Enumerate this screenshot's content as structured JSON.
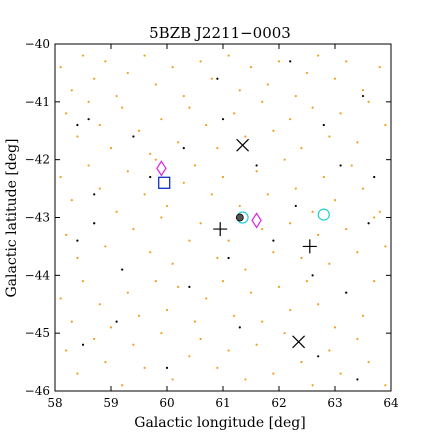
{
  "chart_data": {
    "type": "scatter",
    "title": "5BZB J2211−0003",
    "xlabel": "Galactic longitude [deg]",
    "ylabel": "Galactic latitude [deg]",
    "xlim": [
      58,
      64
    ],
    "ylim": [
      -46,
      -40
    ],
    "x_ticks": [
      58,
      59,
      60,
      61,
      62,
      63,
      64
    ],
    "x_tick_labels": [
      "58",
      "59",
      "60",
      "61",
      "62",
      "63",
      "64"
    ],
    "y_ticks": [
      -40,
      -41,
      -42,
      -43,
      -44,
      -45,
      -46
    ],
    "y_tick_labels": [
      "−40",
      "−41",
      "−42",
      "−43",
      "−44",
      "−45",
      "−46"
    ],
    "grid": false,
    "colors": {
      "background_sources": "#f0a020",
      "catalog_sources": "#000000",
      "cross_x": "#000000",
      "plus": "#000000",
      "diamond": "#e020e0",
      "circle": "#20d0d0",
      "square": "#1030c0"
    },
    "series": [
      {
        "marker": "orange-dot",
        "points": [
          [
            58.1,
            -40.4
          ],
          [
            58.3,
            -40.8
          ],
          [
            58.5,
            -40.2
          ],
          [
            58.7,
            -40.6
          ],
          [
            58.9,
            -40.3
          ],
          [
            59.1,
            -40.9
          ],
          [
            59.3,
            -40.5
          ],
          [
            59.6,
            -40.2
          ],
          [
            59.8,
            -40.7
          ],
          [
            60.1,
            -40.4
          ],
          [
            60.3,
            -40.9
          ],
          [
            60.6,
            -40.3
          ],
          [
            60.8,
            -40.6
          ],
          [
            61.1,
            -40.2
          ],
          [
            61.3,
            -40.8
          ],
          [
            61.5,
            -40.4
          ],
          [
            61.8,
            -40.7
          ],
          [
            62.0,
            -40.3
          ],
          [
            62.3,
            -40.9
          ],
          [
            62.5,
            -40.5
          ],
          [
            62.7,
            -40.2
          ],
          [
            63.0,
            -40.6
          ],
          [
            63.2,
            -40.3
          ],
          [
            63.5,
            -40.8
          ],
          [
            63.8,
            -40.4
          ],
          [
            58.2,
            -41.2
          ],
          [
            58.4,
            -41.6
          ],
          [
            58.6,
            -41.0
          ],
          [
            58.8,
            -41.4
          ],
          [
            59.0,
            -41.8
          ],
          [
            59.2,
            -41.1
          ],
          [
            59.5,
            -41.5
          ],
          [
            59.7,
            -41.9
          ],
          [
            59.9,
            -41.3
          ],
          [
            60.2,
            -41.7
          ],
          [
            60.4,
            -41.1
          ],
          [
            60.7,
            -41.4
          ],
          [
            60.9,
            -41.8
          ],
          [
            61.2,
            -41.2
          ],
          [
            61.4,
            -41.6
          ],
          [
            61.7,
            -41.0
          ],
          [
            61.9,
            -41.5
          ],
          [
            62.2,
            -41.3
          ],
          [
            62.4,
            -41.8
          ],
          [
            62.6,
            -41.1
          ],
          [
            62.9,
            -41.6
          ],
          [
            63.1,
            -41.2
          ],
          [
            63.4,
            -41.7
          ],
          [
            63.6,
            -41.0
          ],
          [
            63.9,
            -41.4
          ],
          [
            58.1,
            -42.3
          ],
          [
            58.3,
            -42.7
          ],
          [
            58.6,
            -42.1
          ],
          [
            58.8,
            -42.5
          ],
          [
            59.1,
            -42.9
          ],
          [
            59.3,
            -42.2
          ],
          [
            59.6,
            -42.6
          ],
          [
            59.8,
            -42.0
          ],
          [
            60.0,
            -42.8
          ],
          [
            60.3,
            -42.4
          ],
          [
            60.5,
            -42.1
          ],
          [
            60.8,
            -42.6
          ],
          [
            61.0,
            -42.3
          ],
          [
            61.3,
            -42.8
          ],
          [
            61.6,
            -42.2
          ],
          [
            61.8,
            -42.6
          ],
          [
            62.1,
            -42.0
          ],
          [
            62.3,
            -42.5
          ],
          [
            62.6,
            -42.9
          ],
          [
            62.8,
            -42.3
          ],
          [
            63.0,
            -42.7
          ],
          [
            63.3,
            -42.1
          ],
          [
            63.5,
            -42.5
          ],
          [
            63.8,
            -42.9
          ],
          [
            58.2,
            -43.3
          ],
          [
            58.4,
            -43.7
          ],
          [
            58.7,
            -43.1
          ],
          [
            58.9,
            -43.5
          ],
          [
            59.2,
            -43.9
          ],
          [
            59.4,
            -43.2
          ],
          [
            59.7,
            -43.6
          ],
          [
            59.9,
            -43.0
          ],
          [
            60.1,
            -43.8
          ],
          [
            60.4,
            -43.4
          ],
          [
            60.6,
            -43.1
          ],
          [
            60.9,
            -43.7
          ],
          [
            61.1,
            -43.4
          ],
          [
            61.4,
            -43.9
          ],
          [
            61.7,
            -43.2
          ],
          [
            61.9,
            -43.6
          ],
          [
            62.2,
            -43.1
          ],
          [
            62.4,
            -43.7
          ],
          [
            62.7,
            -43.3
          ],
          [
            62.9,
            -43.8
          ],
          [
            63.2,
            -43.2
          ],
          [
            63.4,
            -43.6
          ],
          [
            63.7,
            -43.0
          ],
          [
            63.9,
            -43.5
          ],
          [
            58.1,
            -44.4
          ],
          [
            58.3,
            -44.8
          ],
          [
            58.5,
            -44.1
          ],
          [
            58.8,
            -44.5
          ],
          [
            59.0,
            -44.9
          ],
          [
            59.3,
            -44.3
          ],
          [
            59.5,
            -44.7
          ],
          [
            59.8,
            -44.1
          ],
          [
            60.0,
            -44.6
          ],
          [
            60.2,
            -44.2
          ],
          [
            60.5,
            -44.8
          ],
          [
            60.7,
            -44.4
          ],
          [
            61.0,
            -44.1
          ],
          [
            61.2,
            -44.7
          ],
          [
            61.5,
            -44.3
          ],
          [
            61.7,
            -44.8
          ],
          [
            62.0,
            -44.2
          ],
          [
            62.2,
            -44.6
          ],
          [
            62.5,
            -44.1
          ],
          [
            62.7,
            -44.5
          ],
          [
            63.0,
            -44.9
          ],
          [
            63.2,
            -44.3
          ],
          [
            63.5,
            -44.7
          ],
          [
            63.7,
            -44.1
          ],
          [
            58.2,
            -45.3
          ],
          [
            58.4,
            -45.7
          ],
          [
            58.7,
            -45.1
          ],
          [
            58.9,
            -45.5
          ],
          [
            59.2,
            -45.9
          ],
          [
            59.4,
            -45.2
          ],
          [
            59.6,
            -45.6
          ],
          [
            59.9,
            -45.0
          ],
          [
            60.1,
            -45.8
          ],
          [
            60.4,
            -45.4
          ],
          [
            60.6,
            -45.1
          ],
          [
            60.9,
            -45.6
          ],
          [
            61.1,
            -45.3
          ],
          [
            61.4,
            -45.8
          ],
          [
            61.6,
            -45.2
          ],
          [
            61.9,
            -45.7
          ],
          [
            62.1,
            -45.0
          ],
          [
            62.4,
            -45.5
          ],
          [
            62.6,
            -45.9
          ],
          [
            62.9,
            -45.3
          ],
          [
            63.1,
            -45.7
          ],
          [
            63.4,
            -45.1
          ],
          [
            63.6,
            -45.5
          ],
          [
            63.9,
            -45.9
          ]
        ]
      },
      {
        "marker": "black-dot",
        "points": [
          [
            58.4,
            -41.4
          ],
          [
            58.6,
            -41.3
          ],
          [
            59.4,
            -41.6
          ],
          [
            59.7,
            -42.3
          ],
          [
            60.3,
            -41.8
          ],
          [
            61.0,
            -41.3
          ],
          [
            61.6,
            -42.1
          ],
          [
            62.8,
            -41.4
          ],
          [
            63.1,
            -42.1
          ],
          [
            63.6,
            -43.1
          ],
          [
            58.4,
            -43.4
          ],
          [
            58.7,
            -43.1
          ],
          [
            59.2,
            -43.9
          ],
          [
            60.4,
            -44.2
          ],
          [
            61.1,
            -43.7
          ],
          [
            61.9,
            -43.4
          ],
          [
            62.6,
            -44.0
          ],
          [
            63.2,
            -44.3
          ],
          [
            58.5,
            -45.2
          ],
          [
            59.1,
            -44.8
          ],
          [
            60.0,
            -45.6
          ],
          [
            61.3,
            -44.9
          ],
          [
            62.7,
            -45.4
          ],
          [
            63.4,
            -45.8
          ],
          [
            60.9,
            -40.6
          ],
          [
            62.2,
            -40.3
          ],
          [
            63.5,
            -40.9
          ],
          [
            58.7,
            -42.6
          ],
          [
            62.3,
            -42.8
          ],
          [
            63.7,
            -42.3
          ]
        ]
      },
      {
        "marker": "cross-x",
        "points": [
          [
            61.35,
            -41.75
          ],
          [
            62.35,
            -45.15
          ]
        ]
      },
      {
        "marker": "plus",
        "points": [
          [
            60.95,
            -43.2
          ],
          [
            62.55,
            -43.5
          ]
        ]
      },
      {
        "marker": "diamond",
        "points": [
          [
            59.9,
            -42.15
          ],
          [
            61.6,
            -43.05
          ]
        ]
      },
      {
        "marker": "circle",
        "points": [
          [
            61.35,
            -43.0
          ],
          [
            62.8,
            -42.95
          ]
        ]
      },
      {
        "marker": "square",
        "points": [
          [
            59.95,
            -42.4
          ]
        ]
      },
      {
        "marker": "filled-circle",
        "points": [
          [
            61.3,
            -43.0
          ]
        ]
      }
    ]
  }
}
